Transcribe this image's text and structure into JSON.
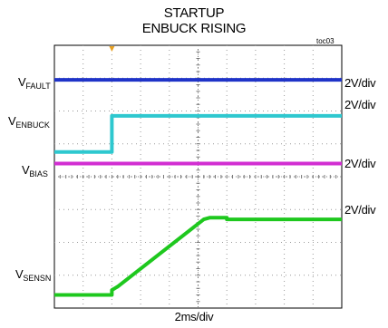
{
  "chart_data": {
    "type": "line",
    "title": "STARTUP",
    "subtitle": "ENBUCK RISING",
    "tag": "toc03",
    "xlabel": "2ms/div",
    "x_divisions": 10,
    "y_divisions": 8,
    "x_unit": "div",
    "series": [
      {
        "label_main": "V",
        "label_sub": "FAULT",
        "scale": "2V/div",
        "color": "#1f33c8",
        "x": [
          0,
          10
        ],
        "y": [
          6.95,
          6.95
        ]
      },
      {
        "label_main": "V",
        "label_sub": "ENBUCK",
        "scale": "2V/div",
        "color": "#2ec8cf",
        "x": [
          0,
          2.0,
          2.0,
          10
        ],
        "y": [
          4.75,
          4.75,
          5.85,
          5.85
        ]
      },
      {
        "label_main": "V",
        "label_sub": "BIAS",
        "scale": "2V/div",
        "color": "#d22ed2",
        "x": [
          0,
          10
        ],
        "y": [
          4.4,
          4.4
        ]
      },
      {
        "label_main": "V",
        "label_sub": "SENSN",
        "scale": "2V/div",
        "color": "#1ec81e",
        "x": [
          0,
          2.0,
          2.0,
          2.2,
          5.2,
          5.4,
          6.0,
          6.0,
          10
        ],
        "y": [
          0.4,
          0.4,
          0.55,
          0.65,
          2.7,
          2.75,
          2.75,
          2.7,
          2.7
        ]
      }
    ]
  }
}
